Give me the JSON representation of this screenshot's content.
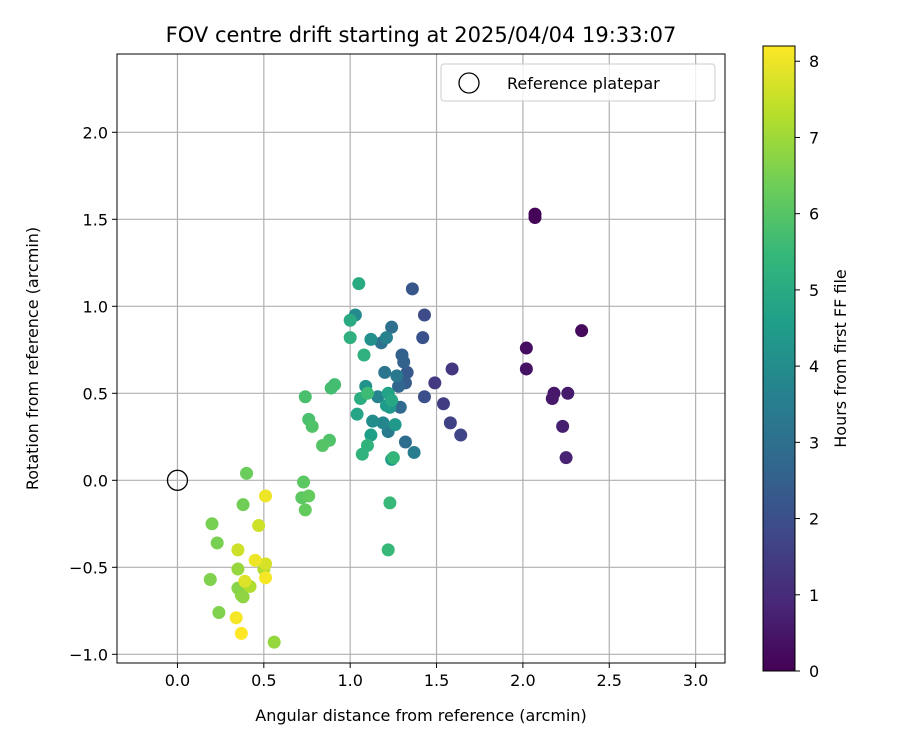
{
  "chart_data": {
    "type": "scatter",
    "title": "FOV centre drift starting at 2025/04/04 19:33:07",
    "xlabel": "Angular distance from reference (arcmin)",
    "ylabel": "Rotation from reference (arcmin)",
    "xlim": [
      -0.35,
      3.17
    ],
    "ylim": [
      -1.05,
      2.45
    ],
    "x_ticks": [
      0.0,
      0.5,
      1.0,
      1.5,
      2.0,
      2.5,
      3.0
    ],
    "x_tick_labels": [
      "0.0",
      "0.5",
      "1.0",
      "1.5",
      "2.0",
      "2.5",
      "3.0"
    ],
    "y_ticks": [
      -1.0,
      -0.5,
      0.0,
      0.5,
      1.0,
      1.5,
      2.0
    ],
    "y_tick_labels": [
      "−1.0",
      "−0.5",
      "0.0",
      "0.5",
      "1.0",
      "1.5",
      "2.0"
    ],
    "grid": true,
    "legend": {
      "placement": "top-right",
      "entries": [
        "Reference platepar"
      ]
    },
    "reference": {
      "x": 0.0,
      "y": 0.0,
      "marker": "open-circle"
    },
    "colorbar": {
      "label": "Hours from first FF file",
      "range": [
        0,
        8.2
      ],
      "ticks": [
        0,
        1,
        2,
        3,
        4,
        5,
        6,
        7,
        8
      ],
      "tick_labels": [
        "0",
        "1",
        "2",
        "3",
        "4",
        "5",
        "6",
        "7",
        "8"
      ],
      "colormap": "viridis",
      "colors": [
        "#440154",
        "#482878",
        "#3e4989",
        "#31688e",
        "#26828e",
        "#1f9e89",
        "#35b779",
        "#6ece58",
        "#b5de2b",
        "#fde725"
      ]
    },
    "series": [
      {
        "color_by": "hours",
        "points": [
          {
            "x": 2.07,
            "y": 1.53,
            "h": 0.05
          },
          {
            "x": 2.07,
            "y": 1.51,
            "h": 0.1
          },
          {
            "x": 2.34,
            "y": 0.86,
            "h": 0.2
          },
          {
            "x": 2.02,
            "y": 0.76,
            "h": 0.3
          },
          {
            "x": 2.02,
            "y": 0.64,
            "h": 0.4
          },
          {
            "x": 2.18,
            "y": 0.5,
            "h": 0.5
          },
          {
            "x": 2.17,
            "y": 0.47,
            "h": 0.55
          },
          {
            "x": 2.26,
            "y": 0.5,
            "h": 0.6
          },
          {
            "x": 2.23,
            "y": 0.31,
            "h": 0.7
          },
          {
            "x": 2.25,
            "y": 0.13,
            "h": 0.8
          },
          {
            "x": 1.59,
            "y": 0.64,
            "h": 1.3
          },
          {
            "x": 1.49,
            "y": 0.56,
            "h": 1.4
          },
          {
            "x": 1.54,
            "y": 0.44,
            "h": 1.5
          },
          {
            "x": 1.58,
            "y": 0.33,
            "h": 1.6
          },
          {
            "x": 1.64,
            "y": 0.26,
            "h": 1.7
          },
          {
            "x": 1.43,
            "y": 0.95,
            "h": 1.9
          },
          {
            "x": 1.43,
            "y": 0.48,
            "h": 2.0
          },
          {
            "x": 1.42,
            "y": 0.82,
            "h": 2.1
          },
          {
            "x": 1.36,
            "y": 1.1,
            "h": 2.2
          },
          {
            "x": 1.33,
            "y": 0.62,
            "h": 2.3
          },
          {
            "x": 1.32,
            "y": 0.56,
            "h": 2.4
          },
          {
            "x": 1.3,
            "y": 0.72,
            "h": 2.5
          },
          {
            "x": 1.31,
            "y": 0.68,
            "h": 2.6
          },
          {
            "x": 1.28,
            "y": 0.54,
            "h": 2.7
          },
          {
            "x": 1.29,
            "y": 0.42,
            "h": 2.8
          },
          {
            "x": 1.32,
            "y": 0.22,
            "h": 2.9
          },
          {
            "x": 1.24,
            "y": 0.88,
            "h": 3.0
          },
          {
            "x": 1.18,
            "y": 0.79,
            "h": 3.1
          },
          {
            "x": 1.2,
            "y": 0.62,
            "h": 3.2
          },
          {
            "x": 1.27,
            "y": 0.6,
            "h": 3.3
          },
          {
            "x": 1.22,
            "y": 0.28,
            "h": 3.4
          },
          {
            "x": 1.37,
            "y": 0.16,
            "h": 3.5
          },
          {
            "x": 1.21,
            "y": 0.82,
            "h": 3.6
          },
          {
            "x": 1.16,
            "y": 0.48,
            "h": 3.7
          },
          {
            "x": 1.19,
            "y": 0.33,
            "h": 3.8
          },
          {
            "x": 1.03,
            "y": 0.95,
            "h": 3.9
          },
          {
            "x": 1.13,
            "y": 0.34,
            "h": 4.0
          },
          {
            "x": 1.12,
            "y": 0.81,
            "h": 4.1
          },
          {
            "x": 1.09,
            "y": 0.54,
            "h": 4.2
          },
          {
            "x": 1.23,
            "y": 0.42,
            "h": 4.3
          },
          {
            "x": 1.26,
            "y": 0.32,
            "h": 4.4
          },
          {
            "x": 1.21,
            "y": 0.43,
            "h": 4.5
          },
          {
            "x": 1.24,
            "y": 0.12,
            "h": 4.5
          },
          {
            "x": 1.12,
            "y": 0.26,
            "h": 4.6
          },
          {
            "x": 1.22,
            "y": 0.5,
            "h": 4.7
          },
          {
            "x": 1.04,
            "y": 0.38,
            "h": 4.8
          },
          {
            "x": 1.24,
            "y": 0.46,
            "h": 4.9
          },
          {
            "x": 1.05,
            "y": 1.13,
            "h": 5.0
          },
          {
            "x": 1.0,
            "y": 0.92,
            "h": 5.0
          },
          {
            "x": 1.06,
            "y": 0.47,
            "h": 5.1
          },
          {
            "x": 1.08,
            "y": 0.72,
            "h": 5.2
          },
          {
            "x": 1.0,
            "y": 0.82,
            "h": 5.2
          },
          {
            "x": 1.1,
            "y": 0.2,
            "h": 5.3
          },
          {
            "x": 1.07,
            "y": 0.15,
            "h": 5.3
          },
          {
            "x": 1.25,
            "y": 0.13,
            "h": 5.4
          },
          {
            "x": 1.23,
            "y": -0.13,
            "h": 5.5
          },
          {
            "x": 1.22,
            "y": -0.4,
            "h": 5.5
          },
          {
            "x": 1.1,
            "y": 0.5,
            "h": 5.6
          },
          {
            "x": 0.91,
            "y": 0.55,
            "h": 5.7
          },
          {
            "x": 0.89,
            "y": 0.53,
            "h": 5.7
          },
          {
            "x": 0.74,
            "y": 0.48,
            "h": 5.8
          },
          {
            "x": 0.76,
            "y": 0.35,
            "h": 5.8
          },
          {
            "x": 0.78,
            "y": 0.31,
            "h": 5.9
          },
          {
            "x": 0.88,
            "y": 0.23,
            "h": 5.9
          },
          {
            "x": 0.84,
            "y": 0.2,
            "h": 6.0
          },
          {
            "x": 0.73,
            "y": -0.01,
            "h": 6.1
          },
          {
            "x": 0.72,
            "y": -0.1,
            "h": 6.1
          },
          {
            "x": 0.76,
            "y": -0.09,
            "h": 6.2
          },
          {
            "x": 0.74,
            "y": -0.17,
            "h": 6.2
          },
          {
            "x": 0.4,
            "y": 0.04,
            "h": 6.3
          },
          {
            "x": 0.38,
            "y": -0.14,
            "h": 6.4
          },
          {
            "x": 0.2,
            "y": -0.25,
            "h": 6.5
          },
          {
            "x": 0.23,
            "y": -0.36,
            "h": 6.5
          },
          {
            "x": 0.19,
            "y": -0.57,
            "h": 6.6
          },
          {
            "x": 0.24,
            "y": -0.76,
            "h": 6.6
          },
          {
            "x": 0.35,
            "y": -0.62,
            "h": 6.7
          },
          {
            "x": 0.37,
            "y": -0.66,
            "h": 6.7
          },
          {
            "x": 0.38,
            "y": -0.67,
            "h": 6.8
          },
          {
            "x": 0.35,
            "y": -0.51,
            "h": 6.9
          },
          {
            "x": 0.56,
            "y": -0.93,
            "h": 6.9
          },
          {
            "x": 0.42,
            "y": -0.61,
            "h": 7.2
          },
          {
            "x": 0.5,
            "y": -0.51,
            "h": 7.2
          },
          {
            "x": 0.35,
            "y": -0.4,
            "h": 7.6
          },
          {
            "x": 0.47,
            "y": -0.26,
            "h": 7.6
          },
          {
            "x": 0.51,
            "y": -0.48,
            "h": 7.7
          },
          {
            "x": 0.39,
            "y": -0.58,
            "h": 7.8
          },
          {
            "x": 0.51,
            "y": -0.09,
            "h": 8.0
          },
          {
            "x": 0.45,
            "y": -0.46,
            "h": 8.0
          },
          {
            "x": 0.51,
            "y": -0.56,
            "h": 8.1
          },
          {
            "x": 0.34,
            "y": -0.79,
            "h": 8.1
          },
          {
            "x": 0.37,
            "y": -0.88,
            "h": 8.2
          }
        ]
      }
    ]
  }
}
